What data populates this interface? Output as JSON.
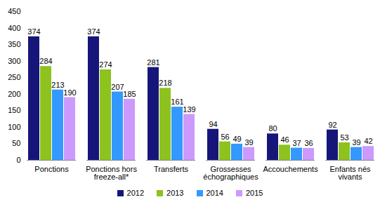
{
  "chart_data": {
    "type": "bar",
    "categories": [
      "Ponctions",
      "Ponctions hors freeze-all*",
      "Transferts",
      "Grossesses échographiques",
      "Accouchements",
      "Enfants nés vivants"
    ],
    "series": [
      {
        "name": "2012",
        "color": "#16167a",
        "values": [
          374,
          374,
          281,
          94,
          80,
          92
        ]
      },
      {
        "name": "2013",
        "color": "#8dc21f",
        "values": [
          284,
          274,
          218,
          56,
          46,
          53
        ]
      },
      {
        "name": "2014",
        "color": "#3399ff",
        "values": [
          213,
          207,
          161,
          49,
          37,
          39
        ]
      },
      {
        "name": "2015",
        "color": "#cc99ff",
        "values": [
          190,
          185,
          139,
          39,
          36,
          42
        ]
      }
    ],
    "ylim": [
      0,
      450
    ],
    "yticks": [
      0,
      50,
      100,
      150,
      200,
      250,
      300,
      350,
      400,
      450
    ],
    "grid": false,
    "legend": "bottom",
    "data_labels": true
  }
}
